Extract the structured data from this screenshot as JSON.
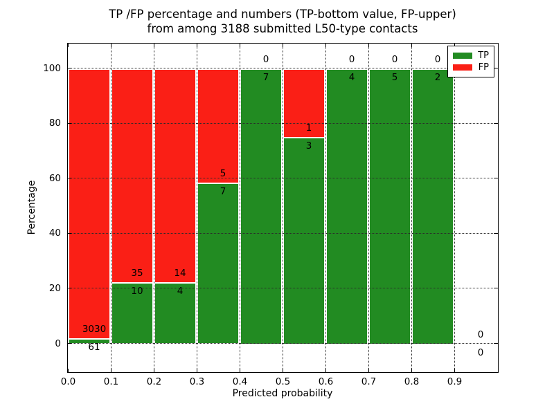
{
  "figure": {
    "title_line1": "TP /FP percentage and numbers (TP-bottom value, FP-upper)",
    "title_line2": "from among 3188 submitted L50-type contacts",
    "xlabel": "Predicted probability",
    "ylabel": "Percentage"
  },
  "legend": {
    "items": [
      {
        "label": "TP",
        "color": "#228b22"
      },
      {
        "label": "FP",
        "color": "#fa1f16"
      }
    ]
  },
  "colors": {
    "tp_green": "#228b22",
    "fp_red": "#fa1f16",
    "bar_edge": "#ffffff",
    "grid": "#2a2a2a",
    "spine": "#000000",
    "background": "#ffffff"
  },
  "chart_data": {
    "type": "bar",
    "stacked": true,
    "title": "TP /FP percentage and numbers (TP-bottom value, FP-upper) from among 3188 submitted L50-type contacts",
    "xlabel": "Predicted probability",
    "ylabel": "Percentage",
    "total_contacts_shown_in_title": 3188,
    "x_bin_edges": [
      0.0,
      0.1,
      0.2,
      0.3,
      0.4,
      0.5,
      0.6,
      0.7,
      0.8,
      0.9,
      1.0
    ],
    "x_tick_labels": [
      "0.0",
      "0.1",
      "0.2",
      "0.3",
      "0.4",
      "0.5",
      "0.6",
      "0.7",
      "0.8",
      "0.9"
    ],
    "y_ticks": [
      0,
      20,
      40,
      60,
      80,
      100
    ],
    "xlim": [
      0.0,
      1.0
    ],
    "ylim": [
      -10.3,
      109.5
    ],
    "grid": "dotted",
    "legend_position": "upper right",
    "series": [
      {
        "name": "TP",
        "color": "#228b22",
        "counts": [
          61,
          10,
          4,
          7,
          7,
          3,
          4,
          5,
          2,
          0
        ]
      },
      {
        "name": "FP",
        "color": "#fa1f16",
        "counts": [
          3030,
          35,
          14,
          5,
          0,
          1,
          0,
          0,
          0,
          0
        ]
      }
    ],
    "tp_percent_per_bin": [
      1.97,
      22.22,
      22.22,
      58.33,
      100,
      75,
      100,
      100,
      100,
      0
    ]
  }
}
